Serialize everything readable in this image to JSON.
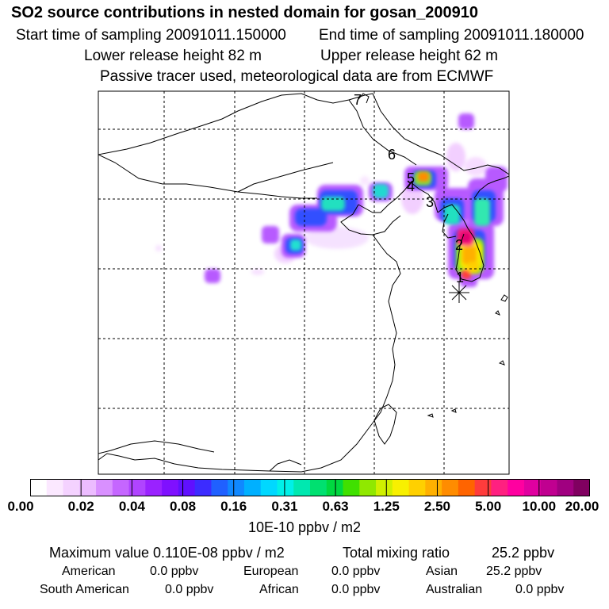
{
  "header": {
    "title": "SO2 source contributions in nested domain for gosan_200910",
    "start_label": "Start time of sampling 20091011.150000",
    "end_label": "End time of sampling 20091011.180000",
    "lower_release": "Lower release height   82 m",
    "upper_release": "Upper release height   62 m",
    "tracer_note": "Passive tracer used, meteorological data are from ECMWF"
  },
  "map": {
    "receptor_symbol": "*",
    "station_labels": [
      "1",
      "2",
      "3",
      "4",
      "5",
      "6",
      "7"
    ]
  },
  "colorbar": {
    "colors": [
      "#ffffff",
      "#fbe8ff",
      "#f4d2ff",
      "#ecbcff",
      "#d990ff",
      "#c566ff",
      "#b044ff",
      "#9a22ff",
      "#7f10ff",
      "#6010ff",
      "#3c2cff",
      "#2060ff",
      "#1088ff",
      "#00b0ff",
      "#00d8ff",
      "#00f0e8",
      "#00e8b0",
      "#00e070",
      "#00d840",
      "#40e000",
      "#90e800",
      "#d0f000",
      "#f8f000",
      "#ffd000",
      "#ffb000",
      "#ff8c00",
      "#ff6400",
      "#ff3c3c",
      "#ff2080",
      "#ff00a0",
      "#e000a0",
      "#c00090",
      "#a00080",
      "#800060"
    ],
    "ticks": [
      "0.00",
      "0.02",
      "0.04",
      "0.08",
      "0.16",
      "0.31",
      "0.63",
      "1.25",
      "2.50",
      "5.00",
      "10.00",
      "20.00"
    ],
    "unit": "10E-10 ppbv / m2"
  },
  "footer": {
    "max_value": "Maximum value  0.110E-08 ppbv / m2",
    "total_mixing": "Total mixing ratio",
    "total_value": "25.2 ppbv",
    "american_label": "American",
    "american_value": "0.0 ppbv",
    "european_label": "European",
    "european_value": "0.0 ppbv",
    "asian_label": "Asian",
    "asian_value": "25.2 ppbv",
    "south_american_label": "South American",
    "south_american_value": "0.0 ppbv",
    "african_label": "African",
    "african_value": "0.0 ppbv",
    "australian_label": "Australian",
    "australian_value": "0.0 ppbv"
  }
}
